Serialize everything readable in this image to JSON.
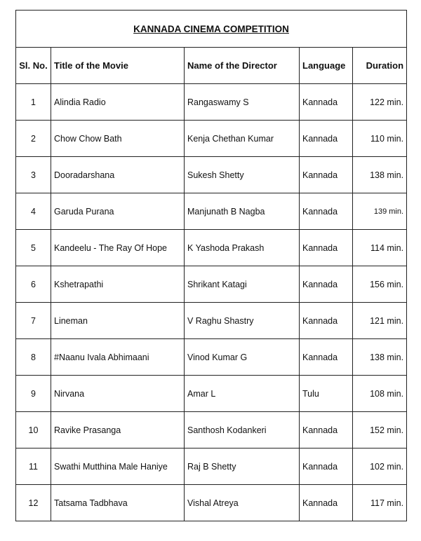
{
  "title": "KANNADA CINEMA COMPETITION",
  "headers": [
    "Sl. No.",
    "Title of the Movie",
    "Name of the Director",
    "Language",
    "Duration"
  ],
  "rows": [
    [
      "1",
      "Alindia Radio",
      "Rangaswamy S",
      "Kannada",
      "122 min."
    ],
    [
      "2",
      "Chow Chow Bath",
      "Kenja Chethan Kumar",
      "Kannada",
      "110 min."
    ],
    [
      "3",
      "Dooradarshana",
      "Sukesh Shetty",
      "Kannada",
      "138 min."
    ],
    [
      "4",
      "Garuda Purana",
      "Manjunath B Nagba",
      "Kannada",
      "139 min."
    ],
    [
      "5",
      "Kandeelu - The Ray Of Hope",
      "K Yashoda Prakash",
      "Kannada",
      "114 min."
    ],
    [
      "6",
      "Kshetrapathi",
      "Shrikant Katagi",
      "Kannada",
      "156 min."
    ],
    [
      "7",
      "Lineman",
      "V Raghu Shastry",
      "Kannada",
      "121 min."
    ],
    [
      "8",
      "#Naanu Ivala Abhimaani",
      "Vinod Kumar G",
      "Kannada",
      "138 min."
    ],
    [
      "9",
      "Nirvana",
      "Amar L",
      "Tulu",
      "108 min."
    ],
    [
      "10",
      "Ravike Prasanga",
      "Santhosh Kodankeri",
      "Kannada",
      "152 min."
    ],
    [
      "11",
      "Swathi Mutthina Male Haniye",
      "Raj B Shetty",
      "Kannada",
      "102 min."
    ],
    [
      "12",
      "Tatsama Tadbhava",
      "Vishal Atreya",
      "Kannada",
      "117 min."
    ]
  ]
}
